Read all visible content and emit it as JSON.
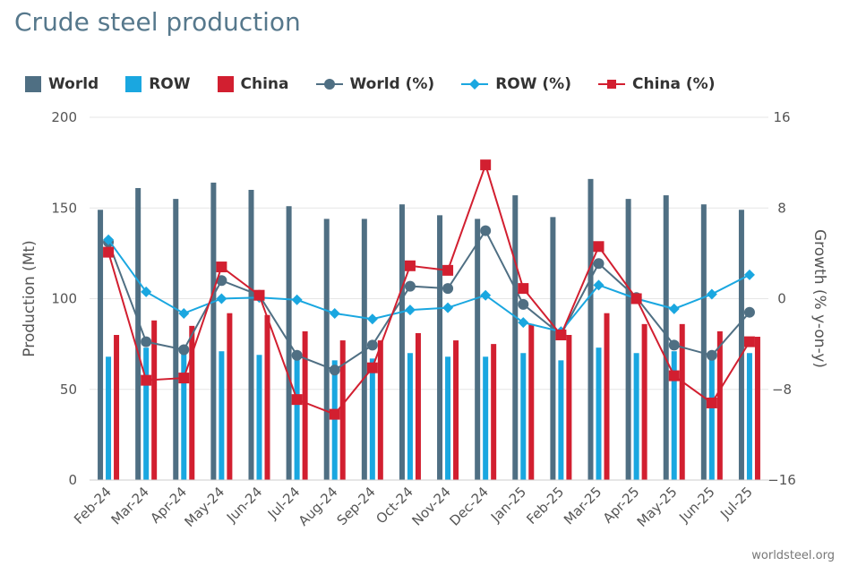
{
  "title": "Crude steel production",
  "credit": "worldsteel.org",
  "chart_data": {
    "type": "bar",
    "categories": [
      "Feb-24",
      "Mar-24",
      "Apr-24",
      "May-24",
      "Jun-24",
      "Jul-24",
      "Aug-24",
      "Sep-24",
      "Oct-24",
      "Nov-24",
      "Dec-24",
      "Jan-25",
      "Feb-25",
      "Mar-25",
      "Apr-25",
      "May-25",
      "Jun-25",
      "Jul-25"
    ],
    "ylabel": "Production (Mt)",
    "y2label": "Growth (% y-on-y)",
    "ylim": [
      0,
      200
    ],
    "yticks": [
      "0",
      "50",
      "100",
      "150",
      "200"
    ],
    "y2lim": [
      -16,
      16
    ],
    "y2ticks": [
      "−16",
      "−8",
      "0",
      "8",
      "16"
    ],
    "legend_position": "top-left",
    "series": [
      {
        "name": "World",
        "type": "bar",
        "axis": "left",
        "color": "#4f6f83",
        "values": [
          149,
          161,
          155,
          164,
          160,
          151,
          144,
          144,
          152,
          146,
          144,
          157,
          145,
          166,
          155,
          157,
          152,
          149
        ]
      },
      {
        "name": "ROW",
        "type": "bar",
        "axis": "left",
        "color": "#1aa7e0",
        "values": [
          68,
          73,
          70,
          71,
          69,
          70,
          66,
          67,
          70,
          68,
          68,
          70,
          66,
          73,
          70,
          71,
          69,
          70
        ]
      },
      {
        "name": "China",
        "type": "bar",
        "axis": "left",
        "color": "#d21f30",
        "values": [
          80,
          88,
          85,
          92,
          91,
          82,
          77,
          77,
          81,
          77,
          75,
          86,
          80,
          92,
          86,
          86,
          82,
          79
        ]
      },
      {
        "name": "World (%)",
        "type": "line",
        "axis": "right",
        "color": "#4f6f83",
        "marker": "circle",
        "values": [
          5.0,
          -3.8,
          -4.5,
          1.6,
          0.3,
          -5.0,
          -6.3,
          -4.1,
          1.1,
          0.9,
          6.0,
          -0.5,
          -3.2,
          3.1,
          0.1,
          -4.1,
          -5.0,
          -1.2
        ]
      },
      {
        "name": "ROW (%)",
        "type": "line",
        "axis": "right",
        "color": "#1aa7e0",
        "marker": "diamond",
        "values": [
          5.2,
          0.6,
          -1.3,
          0.0,
          0.1,
          -0.1,
          -1.3,
          -1.8,
          -1.0,
          -0.8,
          0.3,
          -2.1,
          -2.9,
          1.2,
          0.0,
          -0.9,
          0.4,
          2.1
        ]
      },
      {
        "name": "China (%)",
        "type": "line",
        "axis": "right",
        "color": "#d21f30",
        "marker": "square",
        "values": [
          4.1,
          -7.2,
          -7.0,
          2.8,
          0.3,
          -8.9,
          -10.2,
          -6.1,
          2.9,
          2.5,
          11.8,
          0.9,
          -3.2,
          4.6,
          0.0,
          -6.8,
          -9.2,
          -3.8
        ]
      }
    ]
  }
}
